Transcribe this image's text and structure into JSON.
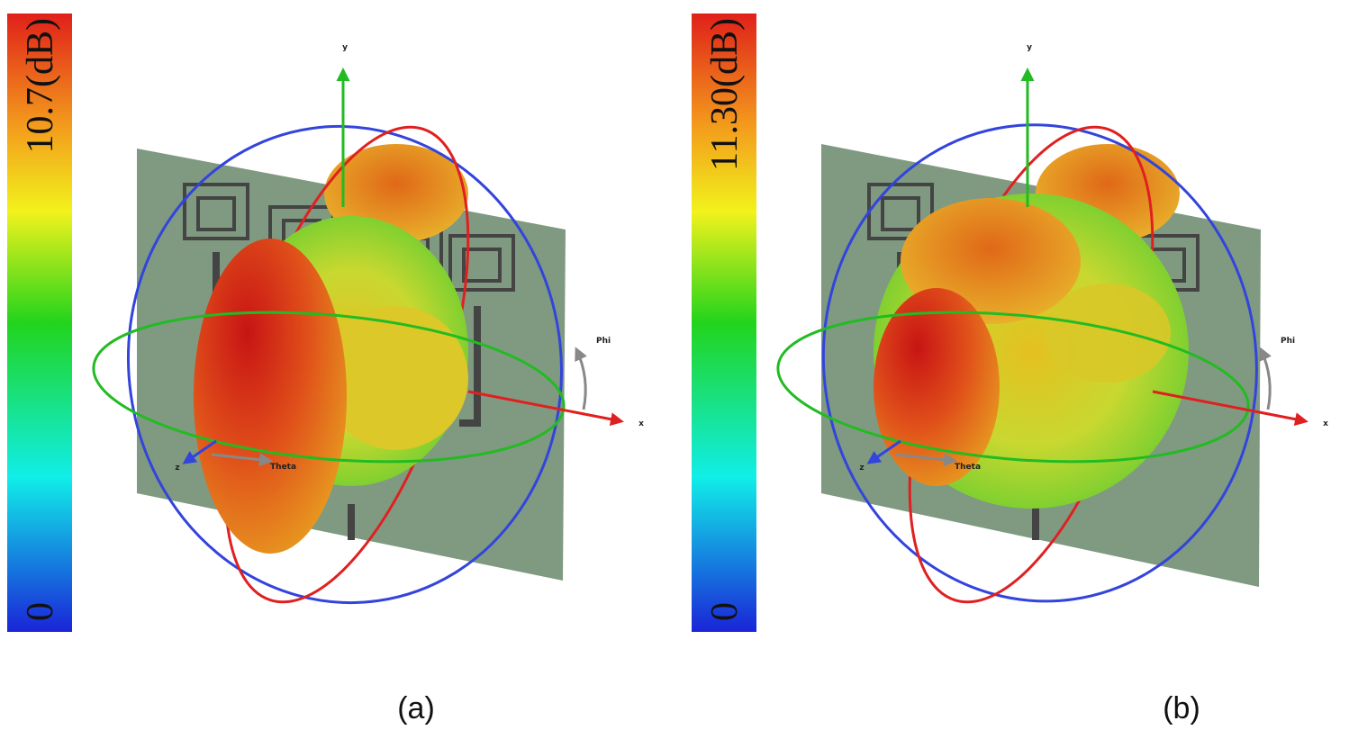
{
  "panels": [
    {
      "colorbar": {
        "max_label": "10.7(dB)",
        "min_label": "0"
      },
      "axes": {
        "y": "y",
        "x": "x",
        "z": "z",
        "phi": "Phi",
        "theta": "Theta"
      },
      "caption": "(a)"
    },
    {
      "colorbar": {
        "max_label": "11.30(dB)",
        "min_label": "0"
      },
      "axes": {
        "y": "y",
        "x": "x",
        "z": "z",
        "phi": "Phi",
        "theta": "Theta"
      },
      "caption": "(b)"
    }
  ]
}
